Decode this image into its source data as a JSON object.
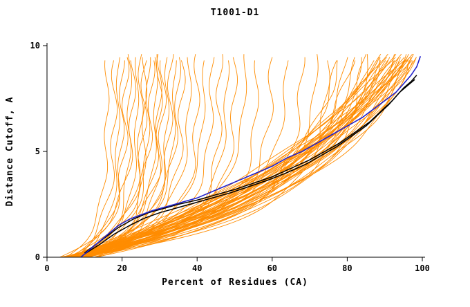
{
  "title": "T1001-D1",
  "chart_data": {
    "type": "line",
    "title": "T1001-D1",
    "xlabel": "Percent of Residues (CA)",
    "ylabel": "Distance Cutoff, A",
    "xlim": [
      0,
      100
    ],
    "ylim": [
      0,
      10
    ],
    "xticks": [
      0,
      20,
      40,
      60,
      80,
      100
    ],
    "yticks": [
      0,
      5,
      10
    ],
    "grid": false,
    "legend": "none",
    "colors": {
      "ensemble": "#ff8c00",
      "best_models": "#000000",
      "highlight_model": "#2222cc",
      "axis": "#000000"
    },
    "series": [
      {
        "name": "highlight-model-blue",
        "color": "#2222cc",
        "width": 1.6,
        "points": [
          [
            9,
            0
          ],
          [
            11,
            0.3
          ],
          [
            13,
            0.6
          ],
          [
            15,
            0.9
          ],
          [
            17,
            1.2
          ],
          [
            19,
            1.5
          ],
          [
            22,
            1.8
          ],
          [
            25,
            2.0
          ],
          [
            28,
            2.2
          ],
          [
            32,
            2.4
          ],
          [
            36,
            2.6
          ],
          [
            40,
            2.8
          ],
          [
            44,
            3.1
          ],
          [
            48,
            3.4
          ],
          [
            52,
            3.7
          ],
          [
            56,
            4.0
          ],
          [
            60,
            4.3
          ],
          [
            64,
            4.7
          ],
          [
            68,
            5.0
          ],
          [
            72,
            5.4
          ],
          [
            76,
            5.8
          ],
          [
            80,
            6.2
          ],
          [
            84,
            6.6
          ],
          [
            87,
            7.0
          ],
          [
            90,
            7.4
          ],
          [
            93,
            7.8
          ],
          [
            95,
            8.2
          ],
          [
            97,
            8.6
          ],
          [
            98.5,
            9.0
          ],
          [
            99.5,
            9.5
          ]
        ]
      },
      {
        "name": "best-model-black-1",
        "color": "#000000",
        "width": 1.5,
        "points": [
          [
            10,
            0.2
          ],
          [
            13,
            0.6
          ],
          [
            16,
            1.0
          ],
          [
            19,
            1.4
          ],
          [
            23,
            1.8
          ],
          [
            27,
            2.1
          ],
          [
            31,
            2.3
          ],
          [
            35,
            2.5
          ],
          [
            40,
            2.7
          ],
          [
            45,
            2.95
          ],
          [
            50,
            3.2
          ],
          [
            55,
            3.5
          ],
          [
            60,
            3.8
          ],
          [
            65,
            4.2
          ],
          [
            70,
            4.6
          ],
          [
            74,
            5.0
          ],
          [
            78,
            5.4
          ],
          [
            82,
            5.9
          ],
          [
            86,
            6.4
          ],
          [
            89,
            6.9
          ],
          [
            92,
            7.4
          ],
          [
            94,
            7.8
          ],
          [
            96,
            8.1
          ],
          [
            98,
            8.4
          ]
        ]
      },
      {
        "name": "best-model-black-2",
        "color": "#000000",
        "width": 1.5,
        "points": [
          [
            10,
            0.15
          ],
          [
            14,
            0.6
          ],
          [
            18,
            1.1
          ],
          [
            22,
            1.5
          ],
          [
            26,
            1.85
          ],
          [
            30,
            2.1
          ],
          [
            34,
            2.3
          ],
          [
            39,
            2.55
          ],
          [
            44,
            2.8
          ],
          [
            49,
            3.05
          ],
          [
            54,
            3.35
          ],
          [
            59,
            3.65
          ],
          [
            64,
            4.0
          ],
          [
            69,
            4.4
          ],
          [
            73,
            4.8
          ],
          [
            77,
            5.2
          ],
          [
            81,
            5.7
          ],
          [
            85,
            6.2
          ],
          [
            88,
            6.7
          ],
          [
            91,
            7.2
          ],
          [
            93,
            7.6
          ],
          [
            95,
            8.0
          ],
          [
            97,
            8.3
          ],
          [
            98.5,
            8.6
          ]
        ]
      }
    ],
    "ensemble": {
      "name": "orange-model-curves",
      "color": "#ff8c00",
      "width": 0.9,
      "y_top_min": 9.3,
      "y_top_max": 9.7,
      "curve_params_format": [
        "x_at_y0",
        "x_cap_percent",
        "rise_rate_k",
        "wiggle_amp"
      ],
      "curves": [
        [
          5,
          16,
          7.5,
          0.6
        ],
        [
          7,
          18,
          6.8,
          0.8
        ],
        [
          9,
          19,
          7.2,
          0.5
        ],
        [
          6,
          20,
          8.0,
          0.7
        ],
        [
          8,
          21,
          6.5,
          0.9
        ],
        [
          10,
          22,
          7.8,
          0.6
        ],
        [
          4,
          23,
          6.2,
          0.8
        ],
        [
          11,
          24,
          7.0,
          0.5
        ],
        [
          5,
          25,
          8.2,
          0.7
        ],
        [
          7,
          26,
          6.6,
          0.9
        ],
        [
          9,
          27,
          7.4,
          0.6
        ],
        [
          6,
          28,
          6.0,
          0.8
        ],
        [
          8,
          29,
          7.9,
          0.5
        ],
        [
          10,
          30,
          6.4,
          0.7
        ],
        [
          5,
          31,
          7.1,
          0.9
        ],
        [
          7,
          32,
          8.3,
          0.6
        ],
        [
          9,
          33,
          6.7,
          0.8
        ],
        [
          6,
          34,
          7.6,
          0.5
        ],
        [
          8,
          35,
          6.1,
          0.7
        ],
        [
          10,
          36,
          7.3,
          0.9
        ],
        [
          5,
          38,
          6.9,
          0.6
        ],
        [
          7,
          40,
          7.7,
          0.8
        ],
        [
          9,
          42,
          6.3,
          0.5
        ],
        [
          6,
          44,
          7.0,
          0.7
        ],
        [
          8,
          46,
          8.1,
          0.9
        ],
        [
          10,
          48,
          6.6,
          0.6
        ],
        [
          5,
          50,
          7.4,
          0.8
        ],
        [
          7,
          53,
          5.8,
          0.5
        ],
        [
          9,
          56,
          6.8,
          0.7
        ],
        [
          6,
          60,
          6.2,
          0.9
        ],
        [
          8,
          64,
          5.5,
          0.6
        ],
        [
          10,
          68,
          5.9,
          0.8
        ],
        [
          7,
          72,
          5.2,
          0.5
        ],
        [
          9,
          75,
          5.6,
          0.7
        ],
        [
          12,
          26,
          9.0,
          0.6
        ],
        [
          13,
          30,
          8.6,
          0.8
        ],
        [
          6,
          78,
          3.4,
          0.8
        ],
        [
          8,
          80,
          3.8,
          0.6
        ],
        [
          10,
          82,
          3.1,
          0.9
        ],
        [
          7,
          84,
          3.6,
          0.7
        ],
        [
          9,
          86,
          4.0,
          0.5
        ],
        [
          11,
          79,
          2.9,
          0.8
        ],
        [
          5,
          83,
          3.3,
          0.6
        ],
        [
          12,
          85,
          3.7,
          0.9
        ],
        [
          5,
          88,
          2.6,
          0.7
        ],
        [
          7,
          89,
          2.2,
          0.9
        ],
        [
          9,
          90,
          1.8,
          0.5
        ],
        [
          6,
          90,
          2.9,
          0.8
        ],
        [
          8,
          91,
          1.5,
          0.6
        ],
        [
          10,
          91,
          2.4,
          0.7
        ],
        [
          4,
          92,
          2.0,
          0.9
        ],
        [
          11,
          92,
          1.3,
          0.5
        ],
        [
          5,
          93,
          2.7,
          0.8
        ],
        [
          7,
          93,
          1.7,
          0.6
        ],
        [
          9,
          94,
          2.3,
          0.7
        ],
        [
          6,
          94,
          1.4,
          0.9
        ],
        [
          8,
          95,
          2.8,
          0.5
        ],
        [
          10,
          95,
          1.9,
          0.8
        ],
        [
          5,
          95,
          1.2,
          0.6
        ],
        [
          7,
          96,
          2.5,
          0.7
        ],
        [
          9,
          96,
          1.6,
          0.9
        ],
        [
          6,
          96,
          2.1,
          0.5
        ],
        [
          8,
          97,
          1.3,
          0.8
        ],
        [
          10,
          97,
          2.6,
          0.6
        ],
        [
          5,
          97,
          1.8,
          0.7
        ],
        [
          7,
          98,
          1.2,
          0.9
        ],
        [
          9,
          98,
          2.2,
          0.5
        ],
        [
          6,
          98,
          1.5,
          0.8
        ],
        [
          8,
          98,
          2.7,
          0.6
        ],
        [
          10,
          99,
          1.4,
          0.7
        ],
        [
          5,
          99,
          2.0,
          0.9
        ],
        [
          7,
          99,
          1.6,
          0.5
        ],
        [
          9,
          99,
          2.4,
          0.8
        ],
        [
          6,
          100,
          1.3,
          0.6
        ],
        [
          8,
          100,
          1.9,
          0.7
        ],
        [
          10,
          100,
          1.5,
          0.9
        ],
        [
          4,
          100,
          2.2,
          0.5
        ],
        [
          11,
          100,
          1.1,
          0.8
        ],
        [
          12,
          94,
          1.7,
          0.6
        ],
        [
          13,
          92,
          2.1,
          0.7
        ]
      ]
    }
  }
}
